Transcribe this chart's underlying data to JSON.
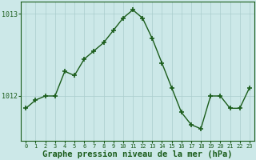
{
  "x": [
    0,
    1,
    2,
    3,
    4,
    5,
    6,
    7,
    8,
    9,
    10,
    11,
    12,
    13,
    14,
    15,
    16,
    17,
    18,
    19,
    20,
    21,
    22,
    23
  ],
  "y": [
    1011.85,
    1011.95,
    1012.0,
    1012.0,
    1012.3,
    1012.25,
    1012.45,
    1012.55,
    1012.65,
    1012.8,
    1012.95,
    1013.05,
    1012.95,
    1012.7,
    1012.4,
    1012.1,
    1011.8,
    1011.65,
    1011.6,
    1012.0,
    1012.0,
    1011.85,
    1011.85,
    1012.1
  ],
  "line_color": "#1a5c1a",
  "marker_color": "#1a5c1a",
  "bg_color": "#cce8e8",
  "grid_color": "#aacccc",
  "axis_color": "#1a5c1a",
  "xlabel": "Graphe pression niveau de la mer (hPa)",
  "xlabel_fontsize": 7.5,
  "ytick_values": [
    1012,
    1013
  ],
  "ytick_labels": [
    "1012",
    "1013"
  ],
  "ylim": [
    1011.45,
    1013.15
  ],
  "xlim": [
    -0.5,
    23.5
  ],
  "marker_size": 4,
  "linewidth": 1.0
}
